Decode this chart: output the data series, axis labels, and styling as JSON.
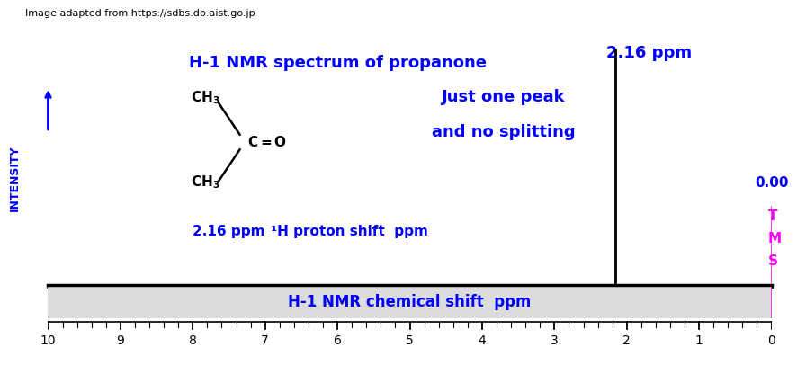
{
  "title": "H-1 NMR spectrum of propanone",
  "watermark": "Image adapted from https://sdbs.db.aist.go.jp",
  "xlabel": "H-1 NMR chemical shift  ppm",
  "ylabel": "INTENSITY",
  "xlim": [
    10,
    0
  ],
  "ylim": [
    0,
    1.0
  ],
  "peak_ppm": 2.16,
  "peak_label": "2.16 ppm",
  "tms_ppm": 0.0,
  "tms_label": "0.00",
  "annotation_line1": "Just one peak",
  "annotation_line2": "and no splitting",
  "scale_label_part1": "2.16 ppm",
  "scale_label_part2": "  ¹H proton shift  ppm",
  "blue": "#0000FF",
  "magenta": "#FF00FF",
  "black": "#000000",
  "dark_gray": "#404040",
  "bg_color": "#FFFFFF",
  "strip_bg": "#DCDCDC",
  "major_ticks": [
    0,
    1,
    2,
    3,
    4,
    5,
    6,
    7,
    8,
    9,
    10
  ],
  "minor_tick_step": 0.2
}
